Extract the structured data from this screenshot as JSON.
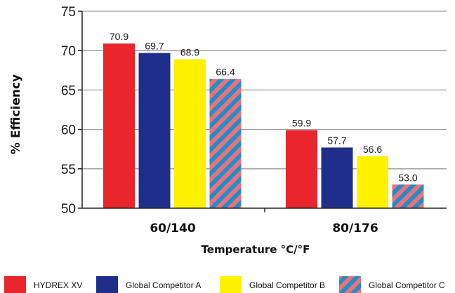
{
  "chart_data": {
    "type": "bar",
    "title": "",
    "xlabel": "Temperature °C/°F",
    "ylabel": "% Efficiency",
    "categories": [
      "60/140",
      "80/176"
    ],
    "ylim": [
      50,
      75
    ],
    "yticks": [
      50,
      55,
      60,
      65,
      70,
      75
    ],
    "grid": true,
    "legend_position": "bottom",
    "series": [
      {
        "name": "HYDREX XV",
        "color": "#e8262c",
        "pattern": "solid",
        "values": [
          70.9,
          59.9
        ],
        "labels": [
          "70.9",
          "59.9"
        ]
      },
      {
        "name": "Global Competitor A",
        "color": "#1f2e8a",
        "pattern": "solid",
        "values": [
          69.7,
          57.7
        ],
        "labels": [
          "69.7",
          "57.7"
        ]
      },
      {
        "name": "Global Competitor B",
        "color": "#fff200",
        "pattern": "solid",
        "values": [
          68.9,
          56.6
        ],
        "labels": [
          "68.9",
          "56.6"
        ]
      },
      {
        "name": "Global Competitor C",
        "color": "#f0707a",
        "stripe_color": "#1f8fc9",
        "pattern": "diagonal-stripes",
        "values": [
          66.4,
          53.0
        ],
        "labels": [
          "66.4",
          "53.0"
        ]
      }
    ]
  }
}
